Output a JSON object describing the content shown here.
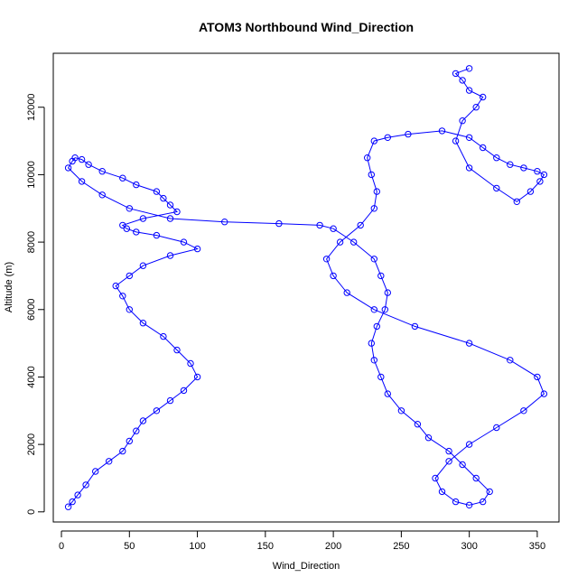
{
  "chart_data": {
    "type": "scatter",
    "title": "ATOM3 Northbound Wind_Direction",
    "xlabel": "Wind_Direction",
    "ylabel": "Altitude (m)",
    "xlim": [
      -6,
      366
    ],
    "ylim": [
      -300,
      13600
    ],
    "x_ticks": [
      0,
      50,
      100,
      150,
      200,
      250,
      300,
      350
    ],
    "y_ticks": [
      0,
      2000,
      4000,
      6000,
      8000,
      10000,
      12000
    ],
    "grid": false,
    "legend": "none",
    "style": "points and connecting lines (open circles)",
    "color": "#0000ff",
    "series": [
      {
        "x": [
          5,
          8,
          12,
          18,
          25,
          35,
          45,
          50,
          55,
          60,
          70,
          80,
          90,
          100,
          95,
          85,
          75,
          60,
          50,
          45,
          40,
          50,
          60,
          80,
          100,
          90,
          70,
          55,
          48,
          45,
          60,
          85,
          80,
          75,
          70,
          55,
          45,
          30,
          20,
          15,
          10,
          8,
          5,
          15,
          30,
          50,
          80,
          120,
          160,
          190,
          200,
          215,
          230,
          235,
          240,
          238,
          232,
          228,
          230,
          235,
          240,
          250,
          262,
          270,
          285,
          295,
          305,
          315,
          310,
          300,
          290,
          280,
          275,
          285,
          300,
          320,
          340,
          355,
          350,
          330,
          300,
          260,
          230,
          210,
          200,
          195,
          205,
          220,
          230,
          232,
          228,
          225,
          230,
          240,
          255,
          280,
          300,
          310,
          320,
          330,
          340,
          350,
          355,
          352,
          345,
          335,
          320,
          300,
          290,
          295,
          305,
          310,
          300,
          295,
          290,
          300
        ],
        "y": [
          150,
          300,
          500,
          800,
          1200,
          1500,
          1800,
          2100,
          2400,
          2700,
          3000,
          3300,
          3600,
          4000,
          4400,
          4800,
          5200,
          5600,
          6000,
          6400,
          6700,
          7000,
          7300,
          7600,
          7800,
          8000,
          8200,
          8300,
          8400,
          8500,
          8700,
          8900,
          9100,
          9300,
          9500,
          9700,
          9900,
          10100,
          10300,
          10450,
          10500,
          10400,
          10200,
          9800,
          9400,
          9000,
          8700,
          8600,
          8550,
          8500,
          8400,
          8000,
          7500,
          7000,
          6500,
          6000,
          5500,
          5000,
          4500,
          4000,
          3500,
          3000,
          2600,
          2200,
          1800,
          1400,
          1000,
          600,
          300,
          200,
          300,
          600,
          1000,
          1500,
          2000,
          2500,
          3000,
          3500,
          4000,
          4500,
          5000,
          5500,
          6000,
          6500,
          7000,
          7500,
          8000,
          8500,
          9000,
          9500,
          10000,
          10500,
          11000,
          11100,
          11200,
          11300,
          11100,
          10800,
          10500,
          10300,
          10200,
          10100,
          10000,
          9800,
          9500,
          9200,
          9600,
          10200,
          11000,
          11600,
          12000,
          12300,
          12500,
          12800,
          13000,
          13150
        ]
      }
    ]
  }
}
